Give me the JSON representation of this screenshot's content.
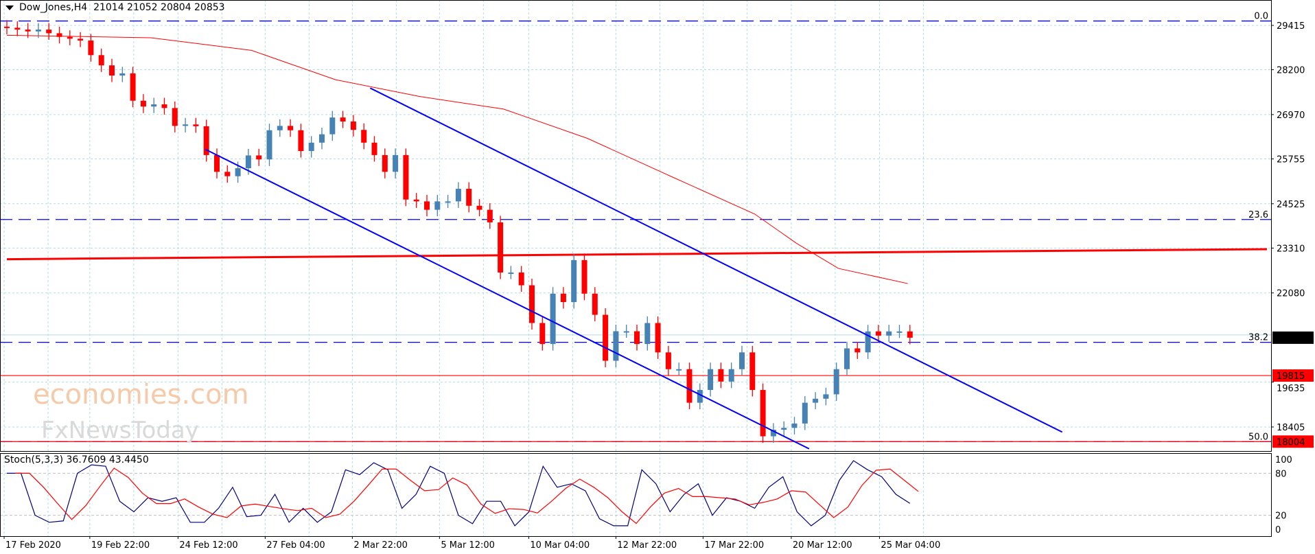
{
  "header": {
    "symbol": "Dow_Jones,H4",
    "ohlc": "21014 21052 20804 20853"
  },
  "stoch_header": {
    "label": "Stoch(5,3,3) 36.7609 43.4450"
  },
  "watermark": {
    "line1": "economies.com",
    "line2": "FxNewsToday"
  },
  "colors": {
    "bull": "#4682b4",
    "bear": "#ff0000",
    "channel": "#0000ff",
    "fib": "#0000ff",
    "ma": "#ff0000",
    "grid": "#b0dde4",
    "k_line": "#000080",
    "d_line": "#ff0000"
  },
  "chart_data": {
    "type": "candlestick",
    "title": "Dow_Jones,H4",
    "ylim": [
      17700,
      30111
    ],
    "price_ticks": [
      "29415",
      "28200",
      "26970",
      "25755",
      "24525",
      "23310",
      "22080",
      "19635",
      "18405"
    ],
    "time_labels": [
      {
        "i": -0.26,
        "label": "17 Feb 2020"
      },
      {
        "i": 7.9,
        "label": "19 Feb 22:00"
      },
      {
        "i": 16.3,
        "label": "24 Feb 12:00"
      },
      {
        "i": 24.6,
        "label": "27 Feb 04:00"
      },
      {
        "i": 32.9,
        "label": "2 Mar 22:00"
      },
      {
        "i": 41.2,
        "label": "5 Mar 12:00"
      },
      {
        "i": 49.7,
        "label": "10 Mar 04:00"
      },
      {
        "i": 58.0,
        "label": "12 Mar 22:00"
      },
      {
        "i": 66.3,
        "label": "17 Mar 22:00"
      },
      {
        "i": 74.7,
        "label": "20 Mar 12:00"
      },
      {
        "i": 83.1,
        "label": "25 Mar 04:00"
      }
    ],
    "closes": [
      29350,
      29300,
      29250,
      29300,
      29200,
      29100,
      29050,
      29000,
      28600,
      28320,
      28040,
      28100,
      27350,
      27190,
      27250,
      27150,
      26660,
      26700,
      26650,
      25860,
      25400,
      25280,
      25500,
      25850,
      25740,
      26540,
      26660,
      26540,
      25970,
      26200,
      26430,
      26890,
      26780,
      26550,
      26200,
      25860,
      25400,
      25860,
      24640,
      24590,
      24360,
      24590,
      24590,
      24935,
      24470,
      24360,
      24015,
      22640,
      22640,
      22290,
      21255,
      20680,
      22060,
      21830,
      22980,
      22060,
      21480,
      20220,
      21030,
      21030,
      20680,
      21255,
      20450,
      19990,
      19990,
      19070,
      19420,
      19990,
      19650,
      19990,
      20450,
      19420,
      18150,
      18330,
      18380,
      18500,
      19070,
      19180,
      19300,
      19990,
      20560,
      20450,
      21025,
      20910,
      21025,
      21025,
      20853
    ],
    "first_open": 29380,
    "moving_average": [
      [
        0,
        29145
      ],
      [
        13.7,
        29076
      ],
      [
        23.3,
        28731
      ],
      [
        31.3,
        27926
      ],
      [
        39.3,
        27466
      ],
      [
        47.3,
        27121
      ],
      [
        55.3,
        26316
      ],
      [
        63.2,
        25281
      ],
      [
        71.2,
        24246
      ],
      [
        75.2,
        23441
      ],
      [
        79.2,
        22751
      ],
      [
        85.8,
        22337
      ]
    ],
    "support_line": {
      "from": [
        0,
        23004
      ],
      "to": [
        120,
        23280
      ]
    },
    "channel_upper": {
      "from": [
        34.6,
        27696
      ],
      "to": [
        100.5,
        18266
      ]
    },
    "channel_lower": {
      "from": [
        18.9,
        26017
      ],
      "to": [
        76.4,
        17806
      ]
    },
    "fib_levels": [
      {
        "label": "0.0",
        "price": 29536
      },
      {
        "label": "23.6",
        "price": 24093
      },
      {
        "label": "38.2",
        "price": 20726
      },
      {
        "label": "50.0",
        "price": 18004
      }
    ],
    "horizontal_levels": [
      {
        "label": "19815",
        "price": 19815,
        "kind": "red-line"
      },
      {
        "label": "18004",
        "price": 18004,
        "kind": "red-line"
      }
    ],
    "current_price": {
      "label": "20853",
      "price": 20853
    },
    "stochastic": {
      "params": "5,3,3",
      "ticks": [
        "100",
        "80",
        "20",
        "0"
      ],
      "k": [
        80,
        80,
        20,
        10,
        12,
        80,
        92,
        90,
        40,
        25,
        45,
        40,
        45,
        10,
        10,
        30,
        60,
        18,
        20,
        50,
        10,
        30,
        10,
        25,
        85,
        78,
        95,
        85,
        30,
        50,
        90,
        80,
        20,
        8,
        40,
        40,
        5,
        25,
        90,
        60,
        65,
        55,
        15,
        5,
        5,
        85,
        65,
        25,
        50,
        65,
        20,
        45,
        40,
        30,
        60,
        75,
        25,
        5,
        20,
        70,
        98,
        85,
        75,
        50,
        37
      ]
    }
  }
}
